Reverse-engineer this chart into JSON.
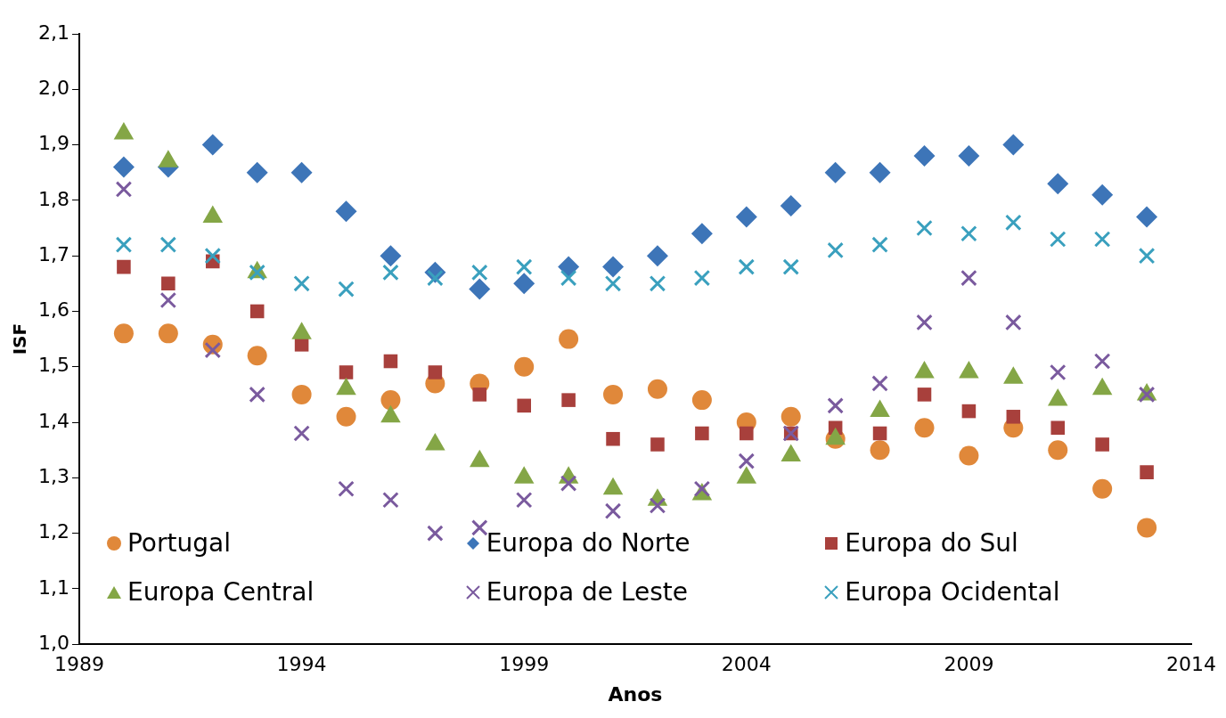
{
  "chart_data": {
    "type": "scatter",
    "xlabel": "Anos",
    "ylabel": "ISF",
    "x": [
      1990,
      1991,
      1992,
      1993,
      1994,
      1995,
      1996,
      1997,
      1998,
      1999,
      2000,
      2001,
      2002,
      2003,
      2004,
      2005,
      2006,
      2007,
      2008,
      2009,
      2010,
      2011,
      2012,
      2013
    ],
    "series": [
      {
        "name": "Portugal",
        "color": "#e0883a",
        "marker": "circle",
        "values": [
          1.56,
          1.56,
          1.54,
          1.52,
          1.45,
          1.41,
          1.44,
          1.47,
          1.47,
          1.5,
          1.55,
          1.45,
          1.46,
          1.44,
          1.4,
          1.41,
          1.37,
          1.35,
          1.39,
          1.34,
          1.39,
          1.35,
          1.28,
          1.21
        ]
      },
      {
        "name": "Europa do Norte",
        "color": "#3d75b8",
        "marker": "diamond",
        "values": [
          1.86,
          1.86,
          1.9,
          1.85,
          1.85,
          1.78,
          1.7,
          1.67,
          1.64,
          1.65,
          1.68,
          1.68,
          1.7,
          1.74,
          1.77,
          1.79,
          1.85,
          1.85,
          1.88,
          1.88,
          1.9,
          1.83,
          1.81,
          1.77
        ]
      },
      {
        "name": "Europa do Sul",
        "color": "#a8403c",
        "marker": "square",
        "values": [
          1.68,
          1.65,
          1.69,
          1.6,
          1.54,
          1.49,
          1.51,
          1.49,
          1.45,
          1.43,
          1.44,
          1.37,
          1.36,
          1.38,
          1.38,
          1.38,
          1.39,
          1.38,
          1.45,
          1.42,
          1.41,
          1.39,
          1.36,
          1.31
        ]
      },
      {
        "name": "Europa Central",
        "color": "#84a646",
        "marker": "triangle",
        "values": [
          1.92,
          1.87,
          1.77,
          1.67,
          1.56,
          1.46,
          1.41,
          1.36,
          1.33,
          1.3,
          1.3,
          1.28,
          1.26,
          1.27,
          1.3,
          1.34,
          1.37,
          1.42,
          1.49,
          1.49,
          1.48,
          1.44,
          1.46,
          1.45
        ]
      },
      {
        "name": "Europa de Leste",
        "color": "#7a5a9e",
        "marker": "cross",
        "values": [
          1.82,
          1.62,
          1.53,
          1.45,
          1.38,
          1.28,
          1.26,
          1.2,
          1.21,
          1.26,
          1.29,
          1.24,
          1.25,
          1.28,
          1.33,
          1.38,
          1.43,
          1.47,
          1.58,
          1.66,
          1.58,
          1.49,
          1.51,
          1.45
        ]
      },
      {
        "name": "Europa Ocidental",
        "color": "#3aa0be",
        "marker": "cross",
        "values": [
          1.72,
          1.72,
          1.7,
          1.67,
          1.65,
          1.64,
          1.67,
          1.66,
          1.67,
          1.68,
          1.66,
          1.65,
          1.65,
          1.66,
          1.68,
          1.68,
          1.71,
          1.72,
          1.75,
          1.74,
          1.76,
          1.73,
          1.73,
          1.7
        ]
      }
    ],
    "xlim": [
      1989,
      2014
    ],
    "xticks": [
      1989,
      1994,
      1999,
      2004,
      2009,
      2014
    ],
    "ylim": [
      1.0,
      2.1
    ],
    "yticks": [
      {
        "value": 1.0,
        "label": "1,0"
      },
      {
        "value": 1.1,
        "label": "1,1"
      },
      {
        "value": 1.2,
        "label": "1,2"
      },
      {
        "value": 1.3,
        "label": "1,3"
      },
      {
        "value": 1.4,
        "label": "1,4"
      },
      {
        "value": 1.5,
        "label": "1,5"
      },
      {
        "value": 1.6,
        "label": "1,6"
      },
      {
        "value": 1.7,
        "label": "1,7"
      },
      {
        "value": 1.8,
        "label": "1,8"
      },
      {
        "value": 1.9,
        "label": "1,9"
      },
      {
        "value": 2.0,
        "label": "2,0"
      },
      {
        "value": 2.1,
        "label": "2,1"
      }
    ],
    "grid": false,
    "legend": "bottom"
  }
}
